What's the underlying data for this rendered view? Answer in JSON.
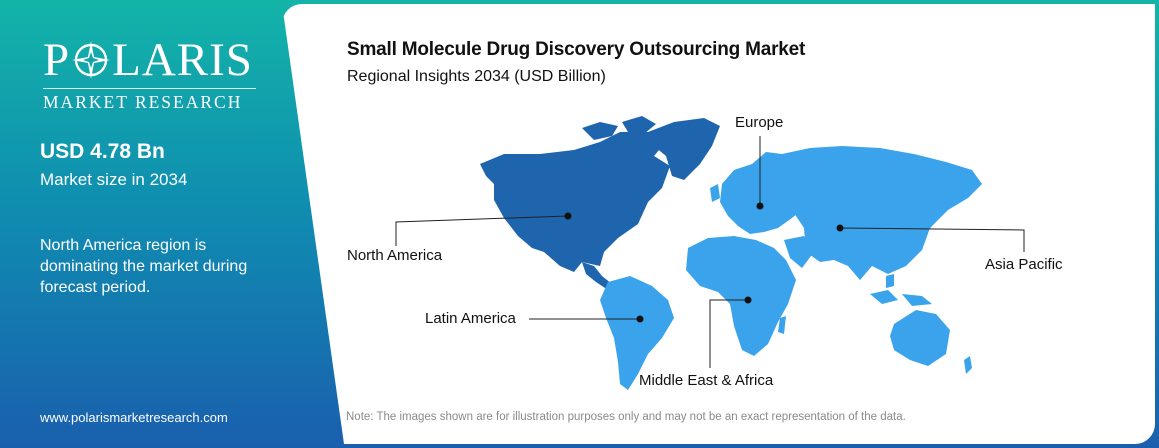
{
  "brand": {
    "name_left": "P",
    "name_right": "LARIS",
    "tagline": "MARKET RESEARCH",
    "website": "www.polarismarketresearch.com"
  },
  "stat": {
    "value": "USD 4.78 Bn",
    "label": "Market size in 2034"
  },
  "insight": "North America region is dominating the market during forecast period.",
  "title": "Small Molecule Drug Discovery Outsourcing Market",
  "subtitle": "Regional Insights 2034 (USD Billion)",
  "regions": [
    {
      "name": "North America",
      "dominant": true
    },
    {
      "name": "Europe",
      "dominant": false
    },
    {
      "name": "Asia Pacific",
      "dominant": false
    },
    {
      "name": "Latin America",
      "dominant": false
    },
    {
      "name": "Middle East & Africa",
      "dominant": false
    }
  ],
  "note": "Note: The images shown are for illustration purposes only and may not be an exact representation of the data.",
  "colors": {
    "dominant_region": "#1e65ae",
    "other_regions": "#3aa3ec",
    "greenland": "#1e65ae",
    "gradient_top": "#13b4a8",
    "gradient_bottom": "#1a5fae"
  }
}
